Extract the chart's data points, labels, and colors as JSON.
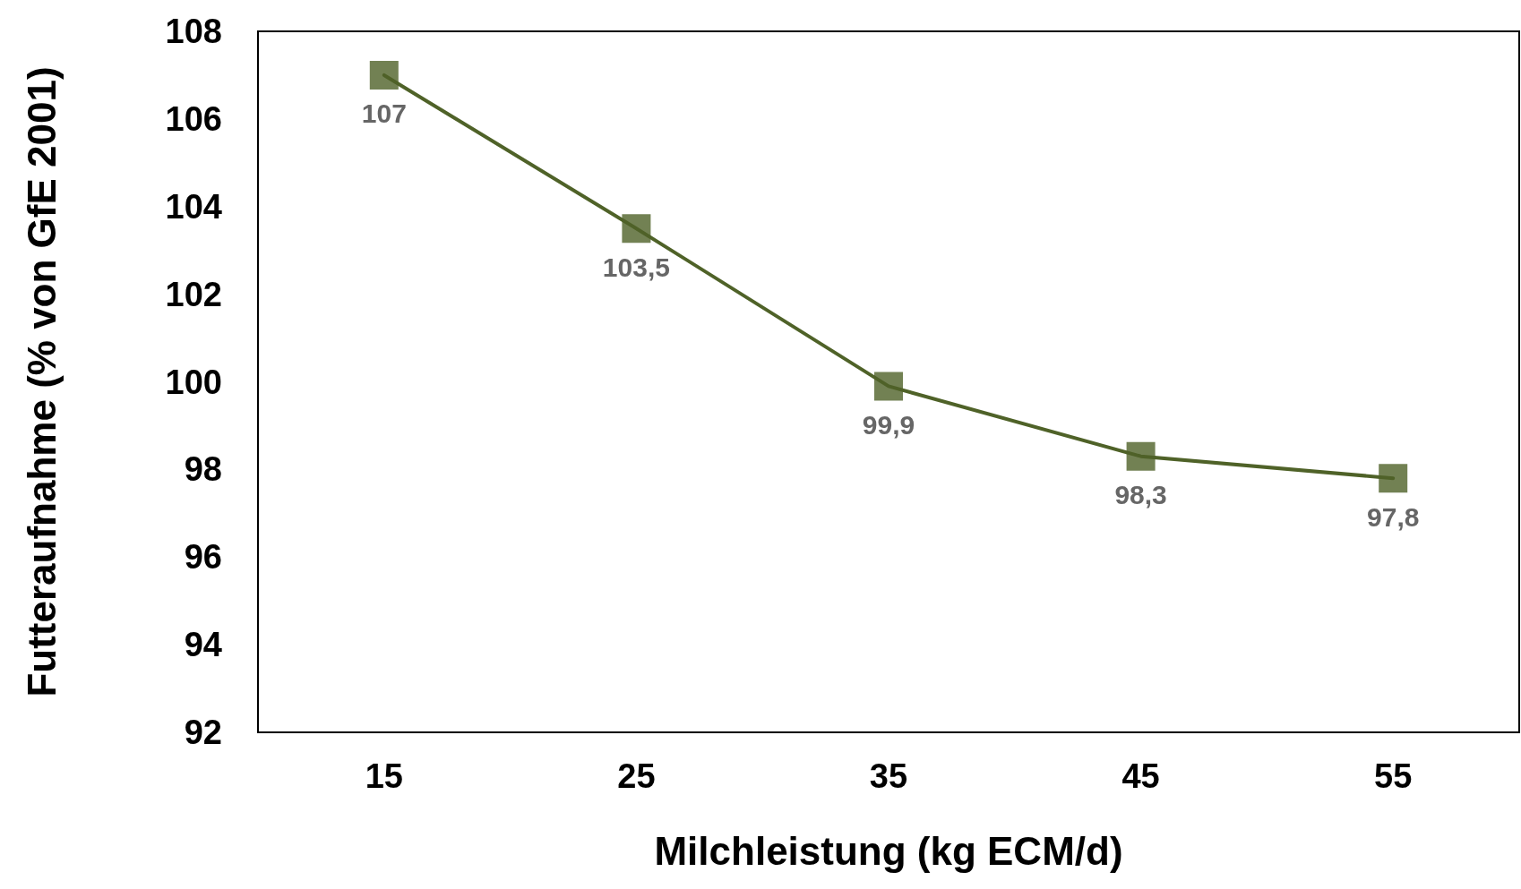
{
  "chart_data": {
    "type": "line",
    "xlabel": "Milchleistung (kg ECM/d)",
    "ylabel": "Futteraufnahme (% von GfE 2001)",
    "categories": [
      "15",
      "25",
      "35",
      "45",
      "55"
    ],
    "series": [
      {
        "color": "#4f6228",
        "values": [
          107,
          103.5,
          99.9,
          98.3,
          97.8
        ],
        "value_labels": [
          "107",
          "103,5",
          "99,9",
          "98,3",
          "97,8"
        ]
      }
    ],
    "ylim": [
      92,
      108
    ],
    "yticks": [
      92,
      94,
      96,
      98,
      100,
      102,
      104,
      106,
      108
    ],
    "grid": false,
    "marker": "square",
    "line_style": "solid"
  }
}
